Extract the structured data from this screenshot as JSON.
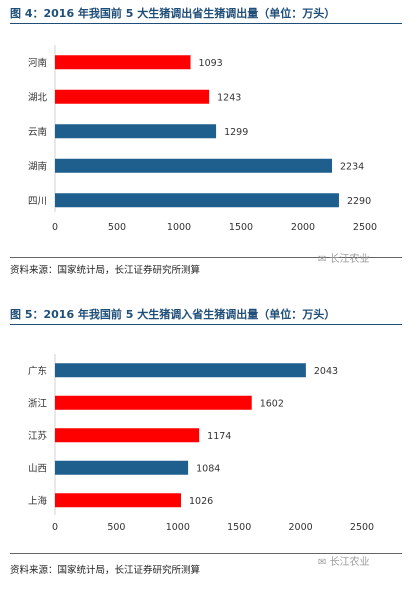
{
  "colors": {
    "red": "#ff0000",
    "blue": "#1f5f8e",
    "title": "#1f4e79"
  },
  "watermark": "长江农业",
  "chart_data": [
    {
      "type": "bar",
      "orientation": "horizontal",
      "title": "图 4：2016 年我国前 5 大生猪调出省生猪调出量（单位：万头）",
      "categories": [
        "河南",
        "湖北",
        "云南",
        "湖南",
        "四川"
      ],
      "values": [
        1093,
        1243,
        1299,
        2234,
        2290
      ],
      "bar_colors": [
        "#ff0000",
        "#ff0000",
        "#1f5f8e",
        "#1f5f8e",
        "#1f5f8e"
      ],
      "xlim": [
        0,
        2500
      ],
      "xticks": [
        "0",
        "500",
        "1000",
        "1500",
        "2000",
        "2500"
      ],
      "grid": false,
      "source": "资料来源：国家统计局，长江证券研究所测算"
    },
    {
      "type": "bar",
      "orientation": "horizontal",
      "title": "图 5：2016 年我国前 5 大生猪调入省生猪调出量（单位：万头）",
      "categories": [
        "广东",
        "浙江",
        "江苏",
        "山西",
        "上海"
      ],
      "values": [
        2043,
        1602,
        1174,
        1084,
        1026
      ],
      "bar_colors": [
        "#1f5f8e",
        "#ff0000",
        "#ff0000",
        "#1f5f8e",
        "#ff0000"
      ],
      "xlim": [
        0,
        2500
      ],
      "xticks": [
        "0",
        "500",
        "1000",
        "1500",
        "2000",
        "2500"
      ],
      "grid": false,
      "source": "资料来源：国家统计局，长江证券研究所测算"
    }
  ]
}
